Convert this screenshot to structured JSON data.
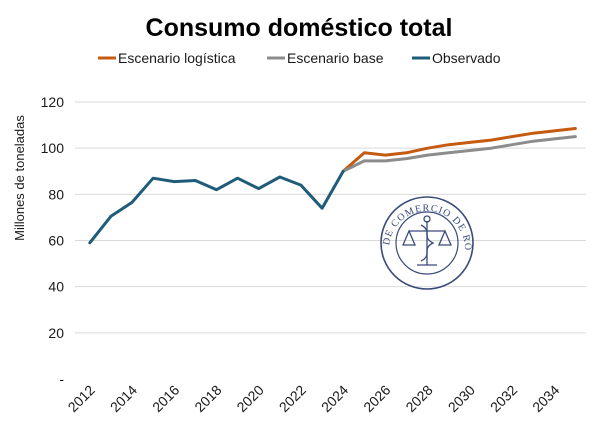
{
  "chart_data": {
    "type": "line",
    "title": "Consumo doméstico total",
    "ylabel": "Millones de toneladas",
    "xlabel": "",
    "xlim": [
      2012,
      2035
    ],
    "ylim": [
      0,
      120
    ],
    "x_ticks": [
      2012,
      2014,
      2016,
      2018,
      2020,
      2022,
      2024,
      2026,
      2028,
      2030,
      2032,
      2034
    ],
    "y_ticks": [
      0,
      20,
      40,
      60,
      80,
      100,
      120
    ],
    "y_tick_labels": [
      "-",
      "20",
      "40",
      "60",
      "80",
      "100",
      "120"
    ],
    "grid": "horizontal",
    "legend_position": "top",
    "series": [
      {
        "name": "Escenario logística",
        "color": "#C55A11",
        "x": [
          2024,
          2025,
          2026,
          2027,
          2028,
          2029,
          2030,
          2031,
          2032,
          2033,
          2034,
          2035
        ],
        "values": [
          90,
          98,
          97,
          98,
          100,
          101.5,
          102.5,
          103.5,
          105,
          106.5,
          107.5,
          108.5
        ]
      },
      {
        "name": "Escenario base",
        "color": "#8C8C8C",
        "x": [
          2024,
          2025,
          2026,
          2027,
          2028,
          2029,
          2030,
          2031,
          2032,
          2033,
          2034,
          2035
        ],
        "values": [
          90,
          94.5,
          94.5,
          95.5,
          97,
          98,
          99,
          100,
          101.5,
          103,
          104,
          105
        ]
      },
      {
        "name": "Observado",
        "color": "#1F5C7A",
        "x": [
          2012,
          2013,
          2014,
          2015,
          2016,
          2017,
          2018,
          2019,
          2020,
          2021,
          2022,
          2023,
          2024
        ],
        "values": [
          59,
          70.5,
          76.5,
          87,
          85.5,
          86,
          82,
          87,
          82.5,
          87.5,
          84,
          74,
          90
        ]
      }
    ]
  },
  "watermark": {
    "text": "BOLSA DE COMERCIO DE ROSARIO",
    "color": "#3a4a7a"
  }
}
